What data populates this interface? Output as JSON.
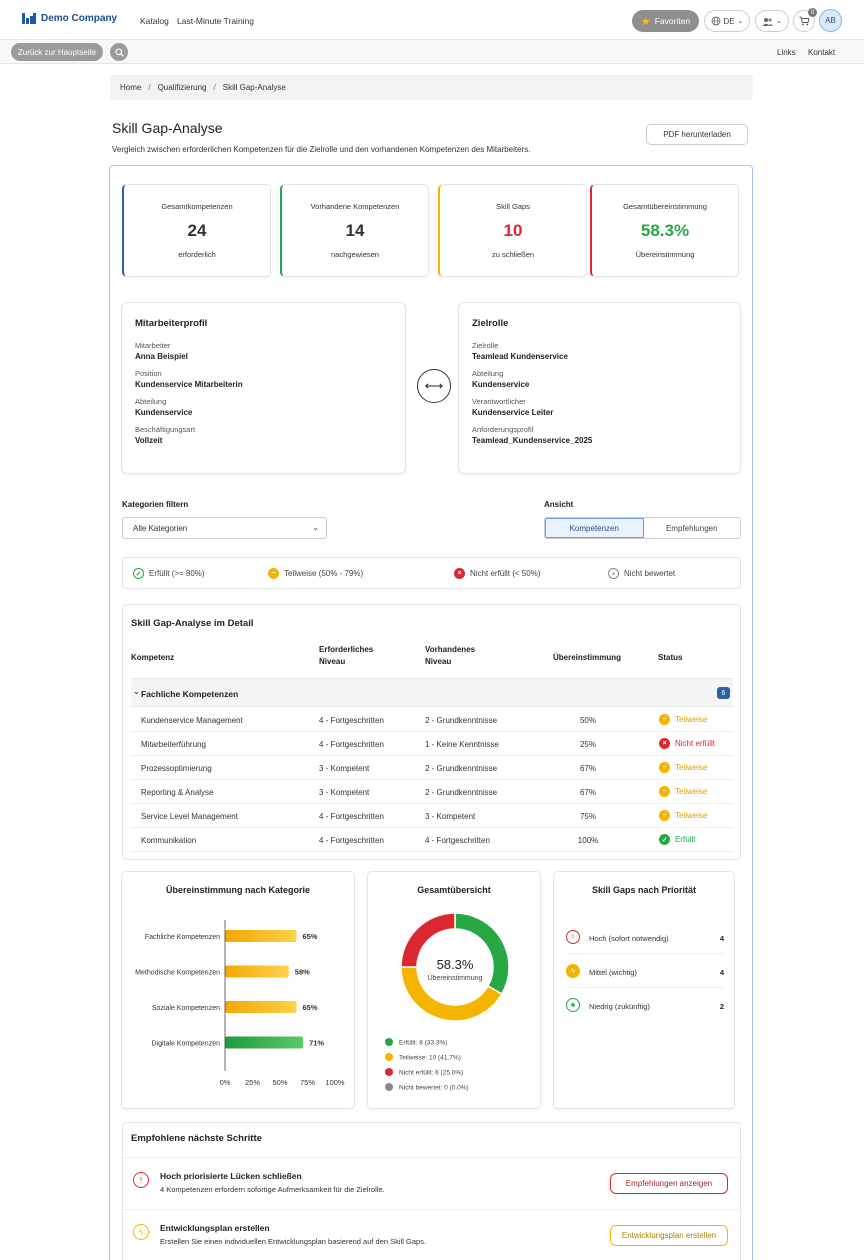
{
  "colors": {
    "blue": "#2c5fa4",
    "green": "#28a745",
    "yellow": "#f4b400",
    "red": "#d9282f",
    "gray": "#888888"
  },
  "topnav": {
    "brand": "Demo Company",
    "links": [
      "Katalog",
      "Last-Minute Training"
    ],
    "favorites": "Favoriten",
    "language": "DE",
    "cart_count": "0",
    "avatar_initials": "AB",
    "icons": [
      "star-icon",
      "globe-icon",
      "users-icon",
      "cart-icon"
    ]
  },
  "subbar": {
    "back": "Zurück zur Hauptseite",
    "links": [
      "Links",
      "Kontakt"
    ]
  },
  "breadcrumb": [
    "Home",
    "Qualifizierung",
    "Skill Gap-Analyse"
  ],
  "page": {
    "title": "Skill Gap-Analyse",
    "subtitle": "Vergleich zwischen erforderlichen Kompetenzen für die Zielrolle und den vorhandenen Kompetenzen des Mitarbeiters.",
    "pdf_button": "PDF herunterladen"
  },
  "stats": [
    {
      "label": "Gesamtkompetenzen",
      "value": "24",
      "sub": "erforderlich",
      "color": "#2c5fa4",
      "value_color": "#333333"
    },
    {
      "label": "Vorhandene Kompetenzen",
      "value": "14",
      "sub": "nachgewiesen",
      "color": "#28a745",
      "value_color": "#333333"
    },
    {
      "label": "Skill Gaps",
      "value": "10",
      "sub": "zu schließen",
      "color": "#f4b400",
      "value_color": "#d9282f"
    },
    {
      "label": "Gesamtübereinstimmung",
      "value": "58.3%",
      "sub": "Übereinstimmung",
      "color": "#d9282f",
      "value_color": "#28a745"
    }
  ],
  "employee": {
    "title": "Mitarbeiterprofil",
    "fields": [
      {
        "label": "Mitarbeiter",
        "value": "Anna Beispiel"
      },
      {
        "label": "Position",
        "value": "Kundenservice Mitarbeiterin"
      },
      {
        "label": "Abteilung",
        "value": "Kundenservice"
      },
      {
        "label": "Beschäftigungsart",
        "value": "Vollzeit"
      }
    ]
  },
  "target": {
    "title": "Zielrolle",
    "fields": [
      {
        "label": "Zielrolle",
        "value": "Teamlead Kundenservice"
      },
      {
        "label": "Abteilung",
        "value": "Kundenservice"
      },
      {
        "label": "Verantwortlicher",
        "value": "Kundenservice Leiter"
      },
      {
        "label": "Anforderungsprofil",
        "value": "Teamlead_Kundenservice_2025"
      }
    ]
  },
  "filter": {
    "label": "Kategorien filtern",
    "selected": "Alle Kategorien",
    "view_label": "Ansicht",
    "views": [
      "Kompetenzen",
      "Empfehlungen"
    ]
  },
  "legend": [
    {
      "label": "Erfüllt (>= 80%)",
      "type": "ok"
    },
    {
      "label": "Teilweise (50% - 79%)",
      "type": "partial"
    },
    {
      "label": "Nicht erfüllt (< 50%)",
      "type": "fail"
    },
    {
      "label": "Nicht bewertet",
      "type": "none"
    }
  ],
  "table": {
    "title": "Skill Gap-Analyse im Detail",
    "headers": {
      "kompetenz": "Kompetenz",
      "erforderlich_1": "Erforderliches",
      "erforderlich_2": "Niveau",
      "vorhanden_1": "Vorhandenes",
      "vorhanden_2": "Niveau",
      "match": "Übereinstimmung",
      "status": "Status"
    },
    "group": {
      "label": "Fachliche Kompetenzen",
      "count": "6"
    },
    "rows": [
      {
        "name": "Kundenservice Management",
        "required": "4 - Fortgeschritten",
        "current": "2 - Grundkenntnisse",
        "match": "50%",
        "status": "Teilweise",
        "type": "partial"
      },
      {
        "name": "Mitarbeiterführung",
        "required": "4 - Fortgeschritten",
        "current": "1 - Keine Kenntnisse",
        "match": "25%",
        "status": "Nicht erfüllt",
        "type": "fail"
      },
      {
        "name": "Prozessoptimierung",
        "required": "3 - Kompetent",
        "current": "2 - Grundkenntnisse",
        "match": "67%",
        "status": "Teilweise",
        "type": "partial"
      },
      {
        "name": "Reporting & Analyse",
        "required": "3 - Kompetent",
        "current": "2 - Grundkenntnisse",
        "match": "67%",
        "status": "Teilweise",
        "type": "partial"
      },
      {
        "name": "Service Level Management",
        "required": "4 - Fortgeschritten",
        "current": "3 - Kompetent",
        "match": "75%",
        "status": "Teilweise",
        "type": "partial"
      },
      {
        "name": "Kommunikation",
        "required": "4 - Fortgeschritten",
        "current": "4 - Fortgeschritten",
        "match": "100%",
        "status": "Erfüllt",
        "type": "ok"
      }
    ]
  },
  "chart_data": [
    {
      "type": "bar",
      "orientation": "horizontal",
      "title": "Übereinstimmung nach Kategorie",
      "categories": [
        "Fachliche Kompetenzen",
        "Methodische Kompetenzen",
        "Soziale Kompetenzen",
        "Digitale Kompetenzen"
      ],
      "values": [
        65,
        58,
        65,
        71
      ],
      "value_labels": [
        "65%",
        "58%",
        "65%",
        "71%"
      ],
      "bar_colors": [
        "#f4b400",
        "#f4b400",
        "#f4b400",
        "#28a745"
      ],
      "xlim": [
        0,
        100
      ],
      "xticks": [
        "0%",
        "25%",
        "50%",
        "75%",
        "100%"
      ],
      "grid": false
    },
    {
      "type": "pie",
      "title": "Gesamtübersicht",
      "center_value": "58.3%",
      "center_label": "Übereinstimmung",
      "slices": [
        {
          "label": "Erfüllt: 8 (33.3%)",
          "value": 8,
          "color": "#28a745"
        },
        {
          "label": "Teilweise: 10 (41.7%)",
          "value": 10,
          "color": "#f4b400"
        },
        {
          "label": "Nicht erfüllt: 6 (25.0%)",
          "value": 6,
          "color": "#d9282f"
        },
        {
          "label": "Nicht bewertet: 0 (0.0%)",
          "value": 0,
          "color": "#888888"
        }
      ],
      "legend": "bottom"
    }
  ],
  "priority": {
    "title": "Skill Gaps nach Priorität",
    "items": [
      {
        "label": "Hoch (sofort notwendig)",
        "count": "4",
        "color": "#d9282f",
        "icon": "alert-icon"
      },
      {
        "label": "Mittel (wichtig)",
        "count": "4",
        "color": "#f4b400",
        "icon": "bolt-icon"
      },
      {
        "label": "Niedrig (zukünftig)",
        "count": "2",
        "color": "#28a745",
        "icon": "leaf-icon"
      }
    ]
  },
  "next_steps": {
    "title": "Empfohlene nächste Schritte",
    "items": [
      {
        "title": "Hoch priorisierte Lücken schließen",
        "desc": "4 Kompetenzen erfordern sofortige Aufmerksamkeit für die Zielrolle.",
        "button": "Empfehlungen anzeigen",
        "color": "#d9282f"
      },
      {
        "title": "Entwicklungsplan erstellen",
        "desc": "Erstellen Sie einen individuellen Entwicklungsplan basierend auf den Skill Gaps.",
        "button": "Entwicklungsplan erstellen",
        "color": "#f4b400"
      }
    ]
  }
}
